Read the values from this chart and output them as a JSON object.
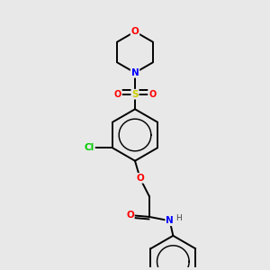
{
  "bg_color": "#e8e8e8",
  "bond_color": "#000000",
  "atom_colors": {
    "O": "#ff0000",
    "N": "#0000ff",
    "S": "#cccc00",
    "Cl": "#00cc00",
    "H": "#444444",
    "C": "#000000"
  },
  "lw": 1.4,
  "fs": 7.5,
  "xlim": [
    0,
    10
  ],
  "ylim": [
    0,
    10
  ]
}
